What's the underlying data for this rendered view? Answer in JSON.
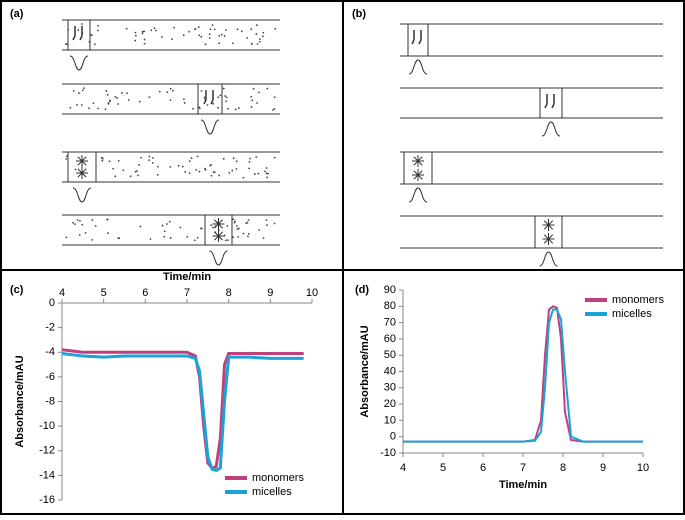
{
  "panel_labels": [
    "(a)",
    "(b)",
    "(c)",
    "(d)"
  ],
  "chart_data": [
    {
      "type": "line",
      "xlabel": "Time/min",
      "ylabel": "Absorbance/mAU",
      "x": [
        4,
        4.5,
        5,
        5.5,
        6,
        6.5,
        7,
        7.2,
        7.3,
        7.4,
        7.5,
        7.6,
        7.7,
        7.8,
        7.9,
        8,
        8.5,
        9,
        9.5,
        9.8
      ],
      "series": [
        {
          "name": "monomers",
          "color": "#c0407e",
          "values": [
            -3.8,
            -4,
            -4,
            -4,
            -4,
            -4,
            -4,
            -4.3,
            -6,
            -10,
            -13,
            -13.4,
            -13.3,
            -11,
            -5,
            -4.1,
            -4.1,
            -4.1,
            -4.1,
            -4.1
          ]
        },
        {
          "name": "micelles",
          "color": "#1ba3d8",
          "values": [
            -4.1,
            -4.3,
            -4.4,
            -4.3,
            -4.3,
            -4.3,
            -4.3,
            -4.5,
            -5.5,
            -9,
            -12.5,
            -13.5,
            -13.6,
            -13.4,
            -8,
            -4.4,
            -4.4,
            -4.5,
            -4.5,
            -4.5
          ]
        }
      ],
      "xlim": [
        4,
        10
      ],
      "xticks": [
        4,
        5,
        6,
        7,
        8,
        9,
        10
      ],
      "ylim": [
        -16,
        0
      ],
      "yticks": [
        0,
        -2,
        -4,
        -6,
        -8,
        -10,
        -12,
        -14,
        -16
      ]
    },
    {
      "type": "line",
      "xlabel": "Time/min",
      "ylabel": "Absorbance/mAU",
      "x": [
        4,
        5,
        6,
        7,
        7.3,
        7.45,
        7.55,
        7.65,
        7.75,
        7.85,
        7.95,
        8.05,
        8.2,
        8.5,
        9,
        10
      ],
      "series": [
        {
          "name": "monomers",
          "color": "#c0407e",
          "values": [
            -3,
            -3,
            -3,
            -3,
            -2,
            10,
            50,
            78,
            80,
            79,
            60,
            15,
            -2,
            -3,
            -3,
            -3
          ]
        },
        {
          "name": "micelles",
          "color": "#1ba3d8",
          "values": [
            -3,
            -3,
            -3,
            -3,
            -2.5,
            3,
            30,
            70,
            78,
            78,
            72,
            40,
            0,
            -3,
            -3,
            -3
          ]
        }
      ],
      "xlim": [
        4,
        10
      ],
      "xticks": [
        4,
        5,
        6,
        7,
        8,
        9,
        10
      ],
      "ylim": [
        -10,
        90
      ],
      "yticks": [
        -10,
        0,
        10,
        20,
        30,
        40,
        50,
        60,
        70,
        80,
        90
      ]
    }
  ]
}
